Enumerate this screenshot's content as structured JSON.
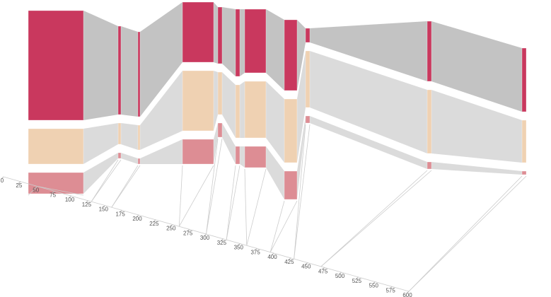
{
  "chart_data": {
    "type": "alluvial",
    "colors": [
      "#c9385e",
      "#efd1b2",
      "#dd8d94"
    ],
    "flow_color": "#bdbdbd",
    "xlim": [
      0,
      600
    ],
    "xticks": [
      0,
      25,
      50,
      75,
      100,
      125,
      150,
      175,
      200,
      225,
      250,
      275,
      300,
      325,
      350,
      375,
      400,
      425,
      450,
      475,
      500,
      525,
      550,
      575,
      600
    ],
    "columns": [
      {
        "x": 50,
        "segments": [
          155,
          50,
          30
        ]
      },
      {
        "x": 130,
        "segments": [
          125,
          30,
          8
        ]
      },
      {
        "x": 160,
        "segments": [
          120,
          35,
          8
        ]
      },
      {
        "x": 260,
        "segments": [
          85,
          85,
          35
        ]
      },
      {
        "x": 300,
        "segments": [
          80,
          60,
          20
        ]
      },
      {
        "x": 330,
        "segments": [
          95,
          75,
          25
        ]
      },
      {
        "x": 360,
        "segments": [
          90,
          80,
          30
        ]
      },
      {
        "x": 395,
        "segments": [
          100,
          90,
          40
        ]
      },
      {
        "x": 430,
        "segments": [
          20,
          80,
          10
        ]
      },
      {
        "x": 470,
        "segments": [
          85,
          90,
          10
        ]
      },
      {
        "x": 600,
        "segments": [
          90,
          60,
          5
        ]
      }
    ]
  }
}
